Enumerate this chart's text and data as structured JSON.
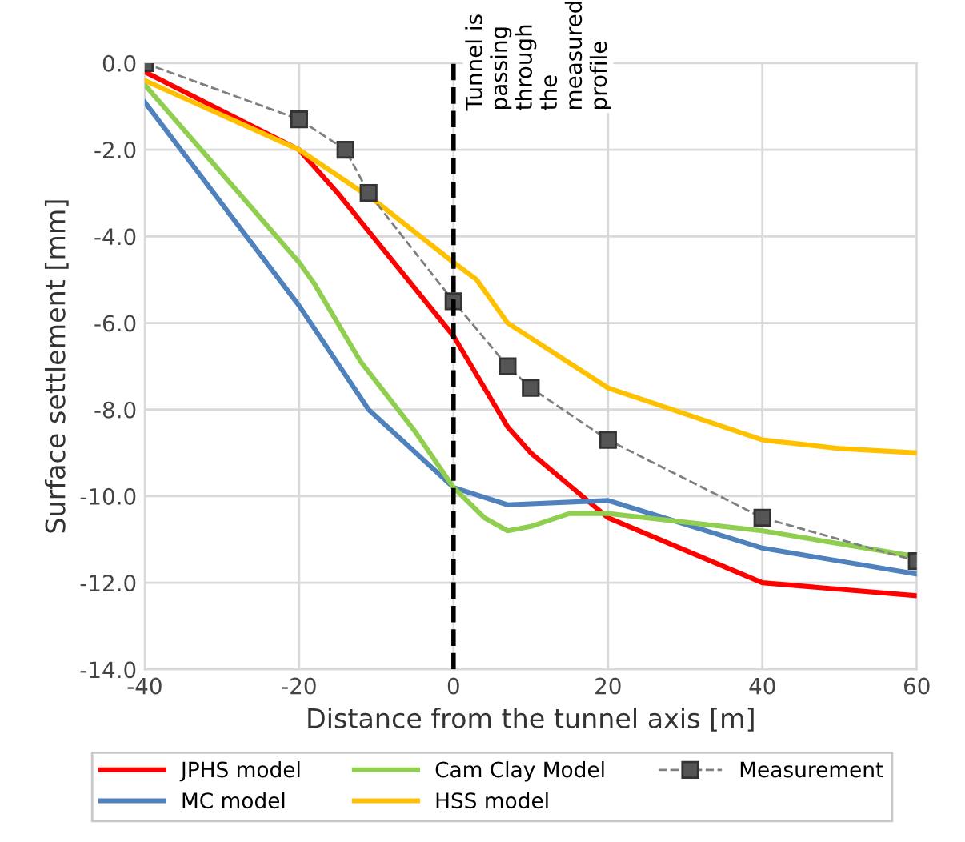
{
  "chart_data": {
    "type": "line",
    "xlabel": "Distance from the tunnel axis [m]",
    "ylabel": "Surface settlement [mm]",
    "xlim": [
      -40,
      60
    ],
    "xticks": [
      -40,
      -20,
      0,
      20,
      40,
      60
    ],
    "ylim": [
      -14,
      0
    ],
    "yticks": [
      {
        "value": -14,
        "label": "-14.0"
      },
      {
        "value": -12,
        "label": "-12.0"
      },
      {
        "value": -10,
        "label": "-10.0"
      },
      {
        "value": -8,
        "label": "-8.0"
      },
      {
        "value": -6,
        "label": "-6.0"
      },
      {
        "value": -4,
        "label": "-4.0"
      },
      {
        "value": -2,
        "label": "-2.0"
      },
      {
        "value": 0,
        "label": "0.0"
      }
    ],
    "grid": true,
    "legend": "bottom",
    "marker": "none",
    "line_style": "solid",
    "ref_lines": [
      {
        "axis": "x",
        "value": 0,
        "label": "Tunnel is passing through the measured profile",
        "color": "#000000",
        "line_style": "dashed"
      }
    ],
    "series": [
      {
        "name": "JPHS model",
        "color": "#ff0000",
        "x": [
          -40,
          -20,
          -15,
          0,
          7,
          10,
          20,
          40,
          60
        ],
        "values": [
          -0.2,
          -2.0,
          -3.0,
          -6.3,
          -8.4,
          -9.0,
          -10.5,
          -12.0,
          -12.3
        ]
      },
      {
        "name": "MC model",
        "color": "#4f81bd",
        "x": [
          -40,
          -20,
          -11,
          0,
          7,
          20,
          40,
          60
        ],
        "values": [
          -0.9,
          -5.6,
          -8.0,
          -9.8,
          -10.2,
          -10.1,
          -11.2,
          -11.8
        ]
      },
      {
        "name": "Cam Clay Model",
        "color": "#8fce4f",
        "x": [
          -40,
          -20,
          -18,
          -12,
          -5,
          0,
          4,
          7,
          10,
          15,
          20,
          40,
          60
        ],
        "values": [
          -0.5,
          -4.6,
          -5.1,
          -6.9,
          -8.5,
          -9.8,
          -10.5,
          -10.8,
          -10.7,
          -10.4,
          -10.4,
          -10.8,
          -11.4
        ]
      },
      {
        "name": "HSS model",
        "color": "#ffc000",
        "x": [
          -40,
          -20,
          -10,
          0,
          3,
          7,
          20,
          40,
          50,
          60
        ],
        "values": [
          -0.4,
          -2.0,
          -3.2,
          -4.6,
          -5.0,
          -6.0,
          -7.5,
          -8.7,
          -8.9,
          -9.0
        ]
      },
      {
        "name": "Measurement",
        "color": "#7f7f7f",
        "type": "line",
        "marker": "square",
        "line_style": "dashed",
        "x": [
          -40,
          -20,
          -14,
          -11,
          0,
          7,
          10,
          20,
          40,
          60
        ],
        "values": [
          0,
          -1.3,
          -2.0,
          -3.0,
          -5.5,
          -7.0,
          -7.5,
          -8.7,
          -10.5,
          -11.5
        ]
      }
    ]
  }
}
